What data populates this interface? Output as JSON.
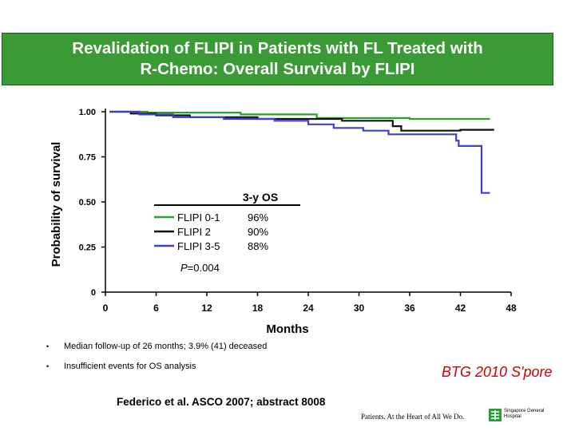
{
  "slide": {
    "title_line1": "Revalidation of FLIPI in Patients with FL Treated with",
    "title_line2": "R-Chemo: Overall Survival by FLIPI",
    "title_bg": "#3a9a35",
    "bullets": [
      "Median follow-up of 26 months; 3.9% (41) deceased",
      "Insufficient events for OS analysis"
    ],
    "bullet_glyph": "•",
    "event_label": "BTG 2010 S'pore",
    "event_color": "#cc0000",
    "reference": "Federico et al. ASCO 2007; abstract 8008",
    "footer_tagline": "Patients. At the Heart of All We Do.",
    "hospital_name": "Singapore General Hospital"
  },
  "chart_data": {
    "type": "line",
    "subtype": "kaplan-meier",
    "xlabel": "Months",
    "ylabel": "Probability of survival",
    "xlim": [
      0,
      48
    ],
    "ylim": [
      0,
      1
    ],
    "x_ticks": [
      "0",
      "6",
      "12",
      "18",
      "24",
      "30",
      "36",
      "42",
      "48"
    ],
    "x_tick_values": [
      0,
      6,
      12,
      18,
      24,
      30,
      36,
      42,
      48
    ],
    "y_ticks": [
      "0",
      "0.25",
      "0.50",
      "0.75",
      "1.00"
    ],
    "y_tick_values": [
      0,
      0.25,
      0.5,
      0.75,
      1.0
    ],
    "legend_title": "3-y OS",
    "legend_position": "center-left",
    "p_value": "P=0.004",
    "series": [
      {
        "name": "FLIPI 0-1",
        "os_3y": "96%",
        "color": "#2ca02c",
        "x": [
          0.5,
          5,
          5,
          16,
          16,
          25,
          25,
          36,
          36,
          45.5
        ],
        "y": [
          1.0,
          1.0,
          0.995,
          0.995,
          0.985,
          0.985,
          0.965,
          0.965,
          0.96,
          0.96
        ]
      },
      {
        "name": "FLIPI 2",
        "os_3y": "90%",
        "color": "#111111",
        "x": [
          0.5,
          3,
          3,
          6,
          6,
          10,
          10,
          18,
          18,
          28,
          28,
          34,
          34,
          35,
          35,
          42,
          42,
          46
        ],
        "y": [
          1.0,
          1.0,
          0.99,
          0.99,
          0.98,
          0.98,
          0.97,
          0.97,
          0.96,
          0.96,
          0.95,
          0.95,
          0.92,
          0.92,
          0.895,
          0.895,
          0.9,
          0.9
        ]
      },
      {
        "name": "FLIPI 3-5",
        "os_3y": "88%",
        "color": "#3f3fc8",
        "x": [
          0.5,
          4,
          4,
          8,
          8,
          14,
          14,
          20,
          20,
          24,
          24,
          27,
          27,
          30.5,
          30.5,
          33.5,
          33.5,
          41.5,
          41.5,
          41.8,
          41.8,
          44.5,
          44.5,
          45.5
        ],
        "y": [
          1.0,
          1.0,
          0.985,
          0.985,
          0.97,
          0.97,
          0.96,
          0.96,
          0.95,
          0.95,
          0.93,
          0.93,
          0.91,
          0.91,
          0.895,
          0.895,
          0.875,
          0.875,
          0.84,
          0.84,
          0.81,
          0.81,
          0.55,
          0.55
        ]
      }
    ]
  }
}
